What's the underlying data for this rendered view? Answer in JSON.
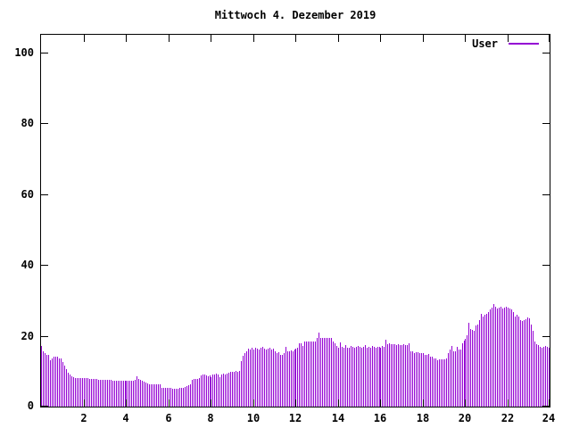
{
  "title": "Mittwoch 4. Dezember 2019",
  "legend": {
    "label": "User"
  },
  "colors": {
    "series": "#9400d3",
    "axis": "#000000",
    "background": "#ffffff"
  },
  "chart_data": {
    "type": "bar",
    "title": "Mittwoch 4. Dezember 2019",
    "xlabel": "",
    "ylabel": "",
    "legend_position": "top-right-inside",
    "grid": false,
    "x_unit": "hour_of_day",
    "interval_minutes": 5,
    "x_range_hours": [
      0,
      24
    ],
    "ylim": [
      0,
      105
    ],
    "x_ticks": [
      2,
      4,
      6,
      8,
      10,
      12,
      14,
      16,
      18,
      20,
      22,
      24
    ],
    "x_tick_labels": [
      "2",
      "4",
      "6",
      "8",
      "10",
      "12",
      "14",
      "16",
      "18",
      "20",
      "22",
      "24"
    ],
    "y_ticks": [
      0,
      20,
      40,
      60,
      80,
      100
    ],
    "y_tick_labels": [
      "0",
      "20",
      "40",
      "60",
      "80",
      "100"
    ],
    "series": [
      {
        "name": "User",
        "color": "#9400d3",
        "values": [
          17.0,
          15.5,
          15.0,
          14.5,
          14.5,
          13.0,
          13.5,
          14.0,
          14.0,
          14.0,
          13.5,
          13.5,
          12.5,
          11.5,
          10.5,
          9.5,
          9.0,
          8.5,
          8.2,
          8.0,
          8.0,
          8.0,
          8.0,
          8.0,
          8.0,
          8.0,
          8.0,
          7.8,
          7.8,
          7.8,
          7.8,
          7.8,
          7.5,
          7.5,
          7.5,
          7.5,
          7.5,
          7.5,
          7.5,
          7.5,
          7.2,
          7.2,
          7.2,
          7.2,
          7.2,
          7.2,
          7.2,
          7.2,
          7.2,
          7.2,
          7.2,
          7.2,
          7.2,
          7.5,
          8.5,
          7.8,
          7.5,
          7.2,
          7.0,
          6.8,
          6.5,
          6.3,
          6.3,
          6.3,
          6.3,
          6.3,
          6.3,
          6.3,
          5.2,
          5.2,
          5.2,
          5.2,
          5.2,
          5.2,
          5.0,
          5.0,
          5.0,
          5.1,
          5.2,
          5.2,
          5.3,
          5.5,
          5.8,
          6.0,
          6.3,
          7.6,
          7.8,
          7.8,
          7.8,
          8.0,
          8.7,
          9.1,
          9.1,
          8.8,
          8.5,
          8.7,
          8.2,
          9.1,
          9.1,
          9.3,
          9.1,
          8.4,
          9.1,
          9.3,
          9.1,
          9.3,
          9.5,
          9.8,
          9.8,
          9.8,
          10.0,
          9.8,
          10.0,
          12.8,
          14.4,
          15.2,
          15.7,
          16.3,
          16.1,
          16.5,
          16.1,
          16.5,
          16.3,
          16.1,
          16.5,
          16.8,
          16.3,
          16.1,
          16.3,
          16.5,
          16.1,
          16.3,
          15.6,
          15.2,
          15.4,
          14.6,
          14.6,
          15.2,
          16.9,
          15.6,
          15.6,
          15.9,
          15.6,
          16.1,
          16.3,
          16.5,
          18.0,
          18.0,
          17.0,
          18.3,
          18.5,
          18.3,
          18.5,
          18.3,
          18.5,
          18.5,
          19.3,
          20.8,
          19.5,
          19.3,
          19.5,
          19.3,
          19.5,
          19.3,
          19.5,
          18.3,
          17.8,
          17.0,
          16.5,
          18.1,
          16.8,
          16.5,
          17.3,
          16.5,
          16.5,
          17.0,
          16.8,
          16.5,
          16.8,
          17.0,
          16.8,
          16.5,
          16.8,
          17.3,
          16.5,
          16.8,
          16.5,
          17.0,
          16.9,
          16.5,
          16.8,
          16.8,
          16.5,
          17.0,
          16.8,
          19.0,
          17.5,
          17.8,
          17.5,
          17.6,
          17.5,
          17.3,
          17.5,
          17.3,
          17.3,
          17.5,
          17.3,
          17.3,
          18.0,
          15.6,
          15.6,
          15.2,
          15.4,
          15.4,
          15.2,
          15.2,
          15.0,
          14.6,
          14.6,
          14.8,
          14.2,
          14.0,
          13.7,
          13.5,
          13.1,
          13.3,
          13.3,
          13.3,
          13.3,
          13.5,
          15.2,
          16.0,
          17.2,
          15.7,
          15.7,
          16.9,
          16.1,
          16.1,
          17.8,
          18.7,
          19.1,
          20.1,
          23.7,
          21.9,
          21.7,
          21.5,
          22.8,
          23.1,
          24.3,
          26.2,
          25.4,
          26.0,
          26.3,
          26.6,
          27.4,
          27.9,
          29.0,
          28.2,
          27.7,
          27.9,
          28.1,
          27.7,
          27.9,
          28.1,
          27.9,
          27.7,
          27.4,
          26.6,
          25.4,
          25.9,
          25.4,
          24.4,
          24.1,
          24.3,
          24.6,
          25.1,
          24.9,
          23.2,
          21.3,
          18.5,
          17.5,
          17.3,
          16.8,
          16.5,
          16.8,
          17.0,
          16.8,
          16.5
        ]
      }
    ]
  }
}
